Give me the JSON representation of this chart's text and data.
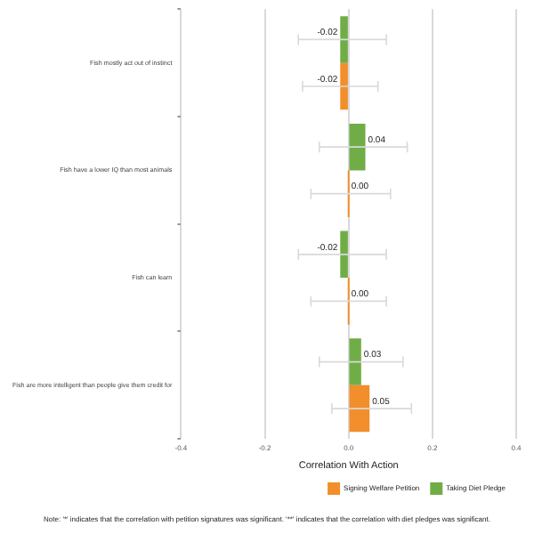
{
  "chart_data": {
    "type": "bar",
    "orientation": "horizontal",
    "xlabel": "Correlation With Action",
    "categories": [
      "Fish mostly act out of instinct",
      "Fish have a lower IQ than most animals",
      "Fish can learn",
      "Fish are more intelligent than people give them credit for"
    ],
    "series": [
      {
        "name": "Taking Diet Pledge",
        "color": "#70ad47",
        "values": [
          -0.02,
          0.04,
          -0.02,
          0.03
        ],
        "value_labels": [
          "-0.02",
          "0.04",
          "-0.02",
          "0.03"
        ],
        "errors": [
          [
            -0.12,
            0.09
          ],
          [
            -0.07,
            0.14
          ],
          [
            -0.12,
            0.09
          ],
          [
            -0.07,
            0.13
          ]
        ]
      },
      {
        "name": "Signing Welfare Petition",
        "color": "#f28e2b",
        "values": [
          -0.02,
          0.0,
          0.0,
          0.05
        ],
        "value_labels": [
          "-0.02",
          "0.00",
          "0.00",
          "0.05"
        ],
        "errors": [
          [
            -0.11,
            0.07
          ],
          [
            -0.09,
            0.1
          ],
          [
            -0.09,
            0.09
          ],
          [
            -0.04,
            0.15
          ]
        ]
      }
    ],
    "xlim": [
      -0.4,
      0.4
    ],
    "xticks": [
      -0.4,
      -0.2,
      {
        "value": 0,
        "label": "0.0"
      },
      0.2,
      0.4
    ],
    "grid": "x",
    "legend": "bottom right",
    "annotations": [
      "Note: '*' indicates that the correlation with petition signatures was significant. '**' indicates that the correlation with diet pledges was significant."
    ]
  }
}
